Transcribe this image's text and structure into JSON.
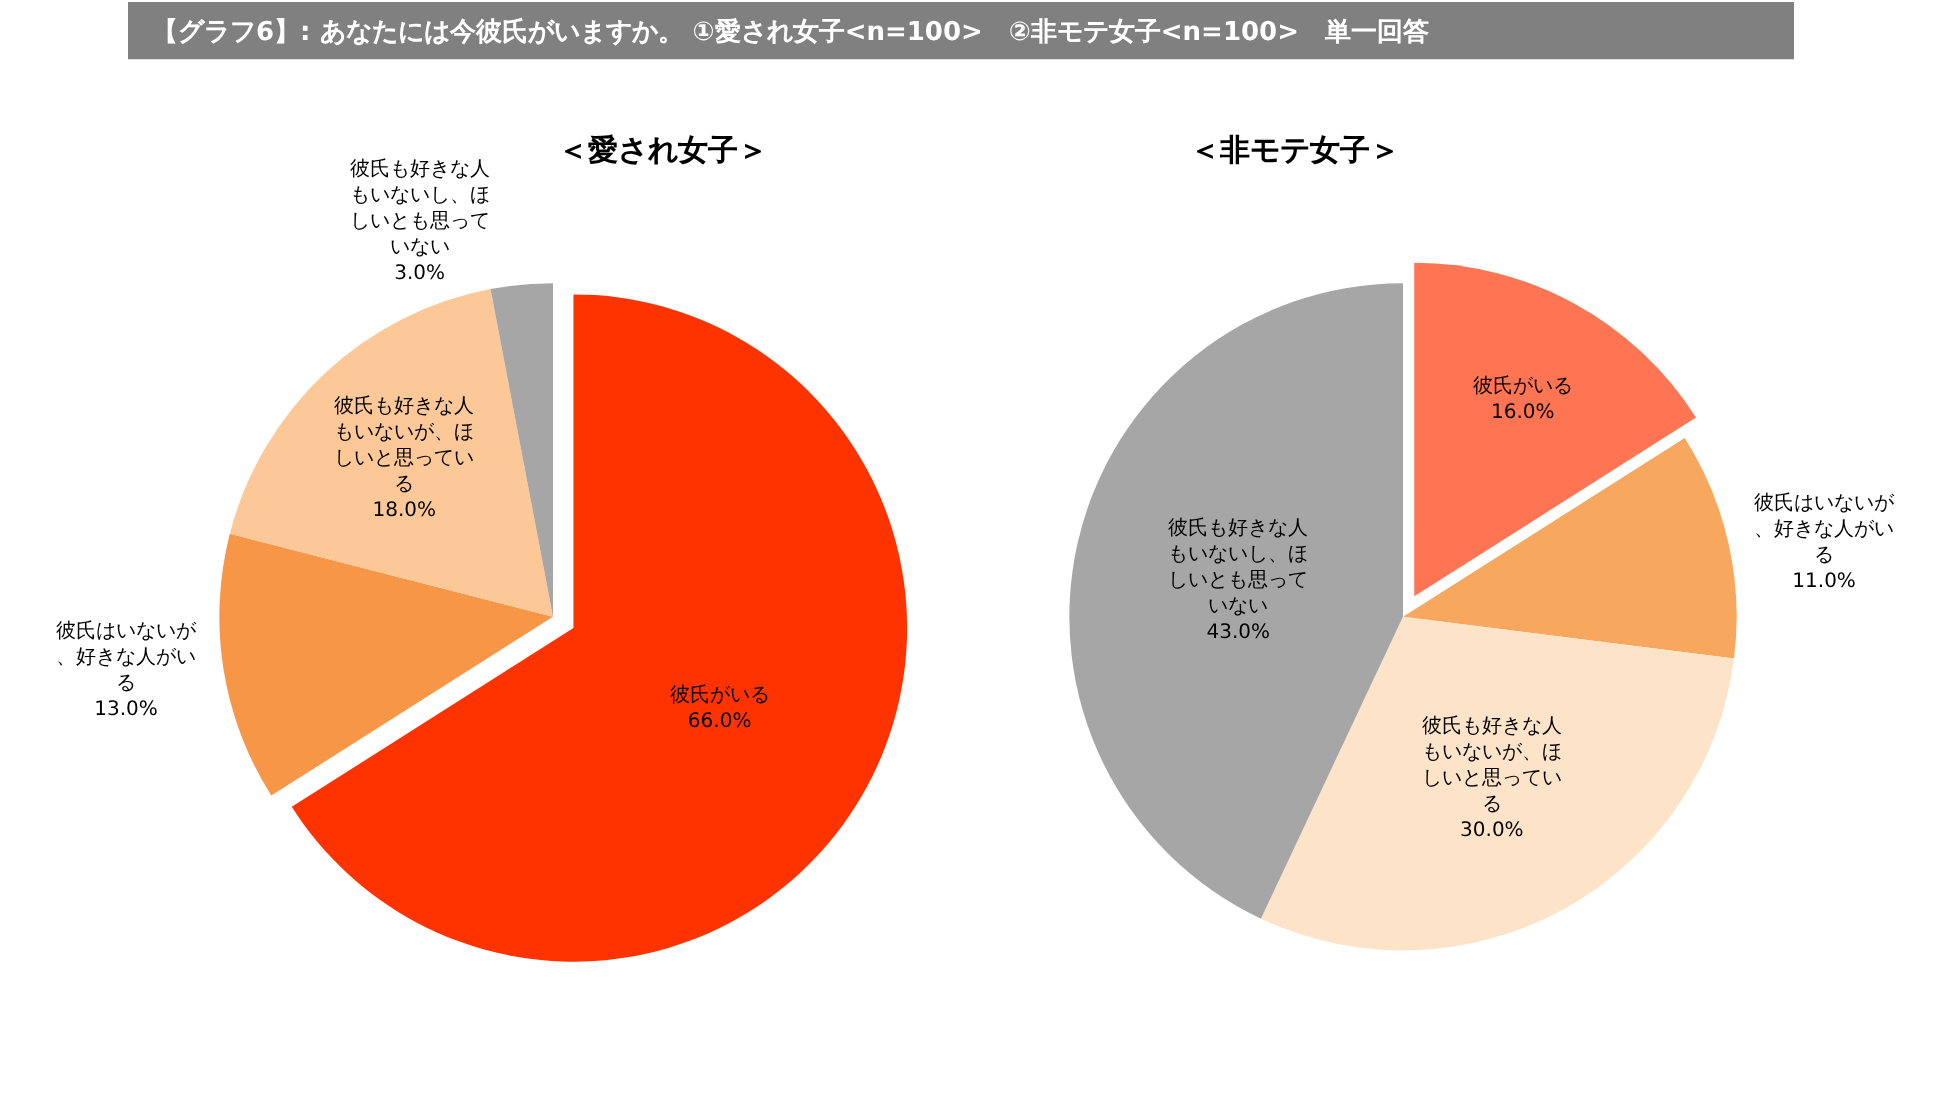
{
  "chart_data": [
    {
      "type": "pie",
      "title": "＜愛され女子＞",
      "annotations": [
        "【グラフ6】: あなたには今彼氏がいますか。 ①愛され女子<n=100>　②非モテ女子<n=100>　単一回答"
      ],
      "categories": [
        "彼氏がいる",
        "彼氏はいないが、好きな人がいる",
        "彼氏も好きな人もいないが、ほしいと思っている",
        "彼氏も好きな人もいないし、ほしいとも思っていない"
      ],
      "values": [
        66.0,
        13.0,
        18.0,
        3.0
      ],
      "value_labels": [
        "66.0%",
        "13.0%",
        "18.0%",
        "3.0%"
      ],
      "colors": [
        "#ff3300",
        "#f79646",
        "#fcc898",
        "#a6a6a6"
      ],
      "legend": false
    },
    {
      "type": "pie",
      "title": "＜非モテ女子＞",
      "categories": [
        "彼氏がいる",
        "彼氏はいないが、好きな人がいる",
        "彼氏も好きな人もいないが、ほしいと思っている",
        "彼氏も好きな人もいないし、ほしいとも思っていない"
      ],
      "values": [
        16.0,
        11.0,
        30.0,
        43.0
      ],
      "value_labels": [
        "16.0%",
        "11.0%",
        "30.0%",
        "43.0%"
      ],
      "colors": [
        "#ff7452",
        "#f8a85e",
        "#fde3c8",
        "#a6a6a6"
      ],
      "legend": false
    }
  ]
}
